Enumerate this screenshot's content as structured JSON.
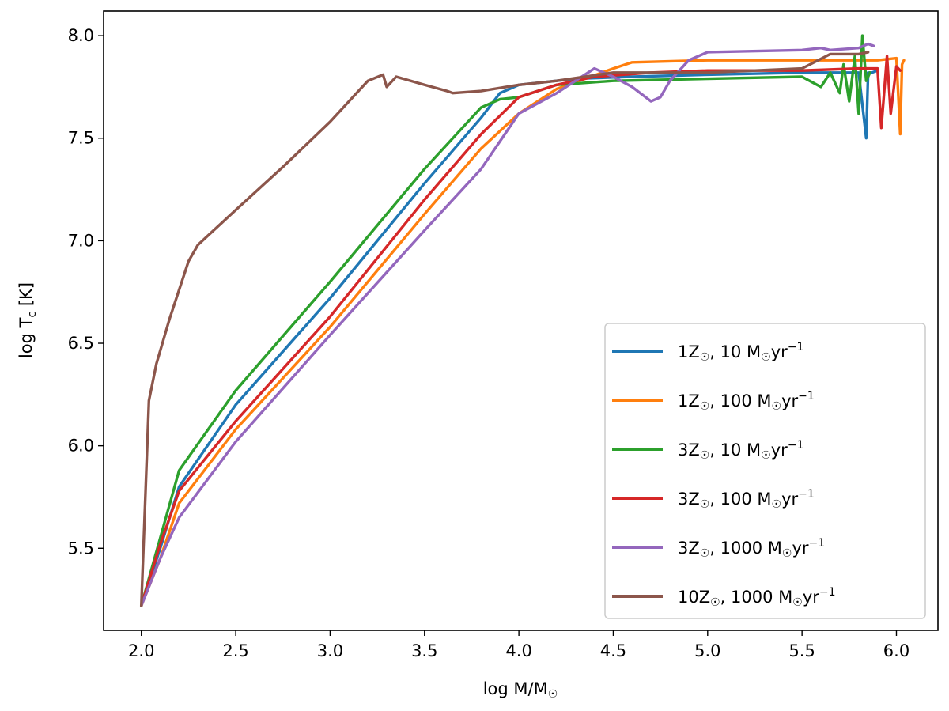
{
  "chart_data": {
    "type": "line",
    "title": "",
    "xlabel": "log M/M☉",
    "ylabel": "log Tc [K]",
    "ylabel_main": "log T",
    "ylabel_sub": "c",
    "ylabel_unit": " [K]",
    "xlim": [
      1.8,
      6.22
    ],
    "ylim": [
      5.1,
      8.12
    ],
    "xticks": [
      2.0,
      2.5,
      3.0,
      3.5,
      4.0,
      4.5,
      5.0,
      5.5,
      6.0
    ],
    "xtick_labels": [
      "2.0",
      "2.5",
      "3.0",
      "3.5",
      "4.0",
      "4.5",
      "5.0",
      "5.5",
      "6.0"
    ],
    "yticks": [
      5.5,
      6.0,
      6.5,
      7.0,
      7.5,
      8.0
    ],
    "ytick_labels": [
      "5.5",
      "6.0",
      "6.5",
      "7.0",
      "7.5",
      "8.0"
    ],
    "grid": false,
    "legend_position": "lower-right",
    "series": [
      {
        "name": "1Z☉, 10 M☉yr⁻¹",
        "label_parts": [
          "1Z",
          "☉",
          ", 10 M",
          "☉",
          "yr",
          "−1"
        ],
        "color": "#1f77b4",
        "x": [
          2.0,
          2.1,
          2.2,
          2.5,
          3.0,
          3.5,
          3.8,
          3.9,
          4.0,
          4.3,
          4.6,
          5.0,
          5.5,
          5.8,
          5.84,
          5.85,
          5.87,
          5.9
        ],
        "y": [
          5.22,
          5.5,
          5.8,
          6.2,
          6.72,
          7.28,
          7.6,
          7.72,
          7.76,
          7.79,
          7.8,
          7.81,
          7.82,
          7.82,
          7.5,
          7.82,
          7.82,
          7.83
        ]
      },
      {
        "name": "1Z☉, 100 M☉yr⁻¹",
        "label_parts": [
          "1Z",
          "☉",
          ", 100 M",
          "☉",
          "yr",
          "−1"
        ],
        "color": "#ff7f0e",
        "x": [
          2.0,
          2.1,
          2.2,
          2.5,
          3.0,
          3.5,
          3.8,
          4.0,
          4.2,
          4.5,
          4.6,
          5.0,
          5.5,
          5.9,
          6.0,
          6.02,
          6.03,
          6.04
        ],
        "y": [
          5.22,
          5.45,
          5.72,
          6.08,
          6.58,
          7.13,
          7.45,
          7.62,
          7.74,
          7.84,
          7.87,
          7.88,
          7.88,
          7.88,
          7.89,
          7.52,
          7.86,
          7.88
        ]
      },
      {
        "name": "3Z☉, 10 M☉yr⁻¹",
        "label_parts": [
          "3Z",
          "☉",
          ", 10 M",
          "☉",
          "yr",
          "−1"
        ],
        "color": "#2ca02c",
        "x": [
          2.0,
          2.1,
          2.2,
          2.5,
          3.0,
          3.5,
          3.8,
          3.9,
          4.0,
          4.2,
          4.5,
          5.0,
          5.5,
          5.6,
          5.65,
          5.7,
          5.72,
          5.75,
          5.78,
          5.8,
          5.82,
          5.84,
          5.86
        ],
        "y": [
          5.22,
          5.55,
          5.88,
          6.27,
          6.8,
          7.35,
          7.65,
          7.69,
          7.7,
          7.76,
          7.78,
          7.79,
          7.8,
          7.75,
          7.82,
          7.72,
          7.86,
          7.68,
          7.9,
          7.62,
          8.0,
          7.78,
          7.82
        ]
      },
      {
        "name": "3Z☉, 100 M☉yr⁻¹",
        "label_parts": [
          "3Z",
          "☉",
          ", 100 M",
          "☉",
          "yr",
          "−1"
        ],
        "color": "#d62728",
        "x": [
          2.0,
          2.1,
          2.2,
          2.5,
          3.0,
          3.5,
          3.8,
          4.0,
          4.2,
          4.4,
          4.7,
          5.0,
          5.5,
          5.8,
          5.9,
          5.92,
          5.95,
          5.97,
          6.0,
          6.02
        ],
        "y": [
          5.22,
          5.52,
          5.78,
          6.12,
          6.63,
          7.2,
          7.52,
          7.7,
          7.76,
          7.8,
          7.82,
          7.83,
          7.83,
          7.84,
          7.84,
          7.55,
          7.9,
          7.62,
          7.85,
          7.83
        ]
      },
      {
        "name": "3Z☉, 1000 M☉yr⁻¹",
        "label_parts": [
          "3Z",
          "☉",
          ", 1000 M",
          "☉",
          "yr",
          "−1"
        ],
        "color": "#9467bd",
        "x": [
          2.0,
          2.1,
          2.2,
          2.5,
          3.0,
          3.5,
          3.8,
          4.0,
          4.2,
          4.4,
          4.5,
          4.6,
          4.7,
          4.75,
          4.8,
          4.9,
          5.0,
          5.5,
          5.6,
          5.65,
          5.8,
          5.85,
          5.88
        ],
        "y": [
          5.22,
          5.45,
          5.65,
          6.02,
          6.54,
          7.05,
          7.35,
          7.62,
          7.72,
          7.84,
          7.8,
          7.75,
          7.68,
          7.7,
          7.78,
          7.88,
          7.92,
          7.93,
          7.94,
          7.93,
          7.94,
          7.96,
          7.95
        ]
      },
      {
        "name": "10Z☉, 1000 M☉yr⁻¹",
        "label_parts": [
          "10Z",
          "☉",
          ", 1000 M",
          "☉",
          "yr",
          "−1"
        ],
        "color": "#8c564b",
        "x": [
          2.0,
          2.04,
          2.08,
          2.15,
          2.25,
          2.3,
          2.5,
          2.75,
          3.0,
          3.2,
          3.28,
          3.3,
          3.35,
          3.5,
          3.62,
          3.65,
          3.8,
          4.0,
          4.2,
          4.5,
          5.0,
          5.5,
          5.65,
          5.8,
          5.85
        ],
        "y": [
          5.22,
          6.22,
          6.4,
          6.62,
          6.9,
          6.98,
          7.15,
          7.36,
          7.58,
          7.78,
          7.81,
          7.75,
          7.8,
          7.76,
          7.73,
          7.72,
          7.73,
          7.76,
          7.78,
          7.82,
          7.82,
          7.84,
          7.91,
          7.91,
          7.92
        ]
      }
    ]
  }
}
